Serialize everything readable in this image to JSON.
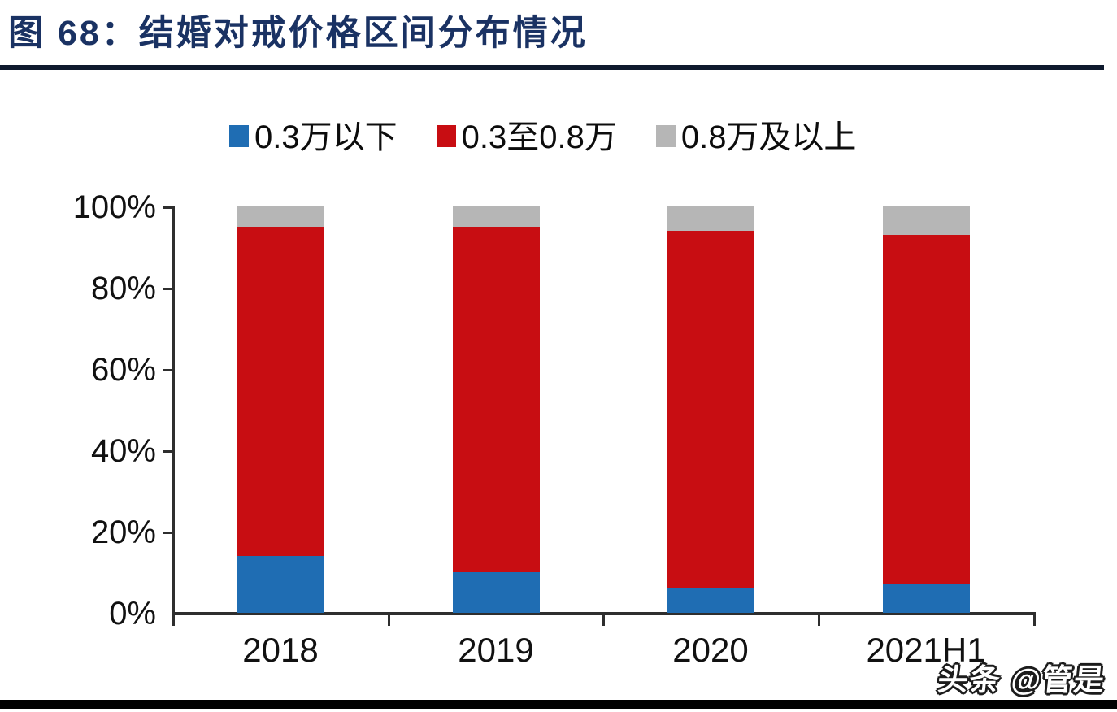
{
  "header": {
    "title": "图 68：结婚对戒价格区间分布情况"
  },
  "watermark": "头条 @管是",
  "chart_data": {
    "type": "bar",
    "stacked": true,
    "percent_stacked": true,
    "title": "结婚对戒价格区间分布情况",
    "categories": [
      "2018",
      "2019",
      "2020",
      "2021H1"
    ],
    "series": [
      {
        "name": "0.3万以下",
        "color": "#1f6db3",
        "values": [
          14,
          10,
          6,
          7
        ]
      },
      {
        "name": "0.3至0.8万",
        "color": "#c80d12",
        "values": [
          81,
          85,
          88,
          86
        ]
      },
      {
        "name": "0.8万及以上",
        "color": "#b6b6b6",
        "values": [
          5,
          5,
          6,
          7
        ]
      }
    ],
    "xlabel": "",
    "ylabel": "",
    "ylim": [
      0,
      100
    ],
    "yticks": [
      "100%",
      "80%",
      "60%",
      "40%",
      "20%",
      "0%"
    ],
    "legend_position": "top",
    "grid": false
  }
}
